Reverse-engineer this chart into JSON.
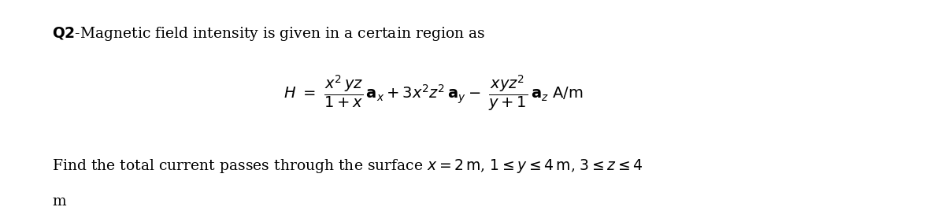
{
  "bg_color": "#ffffff",
  "fig_width": 12.0,
  "fig_height": 2.63,
  "dpi": 100,
  "text_color": "#000000",
  "line1_fontsize": 13.5,
  "line2_fontsize": 14.0,
  "line3_fontsize": 13.5,
  "line4_fontsize": 13.5
}
